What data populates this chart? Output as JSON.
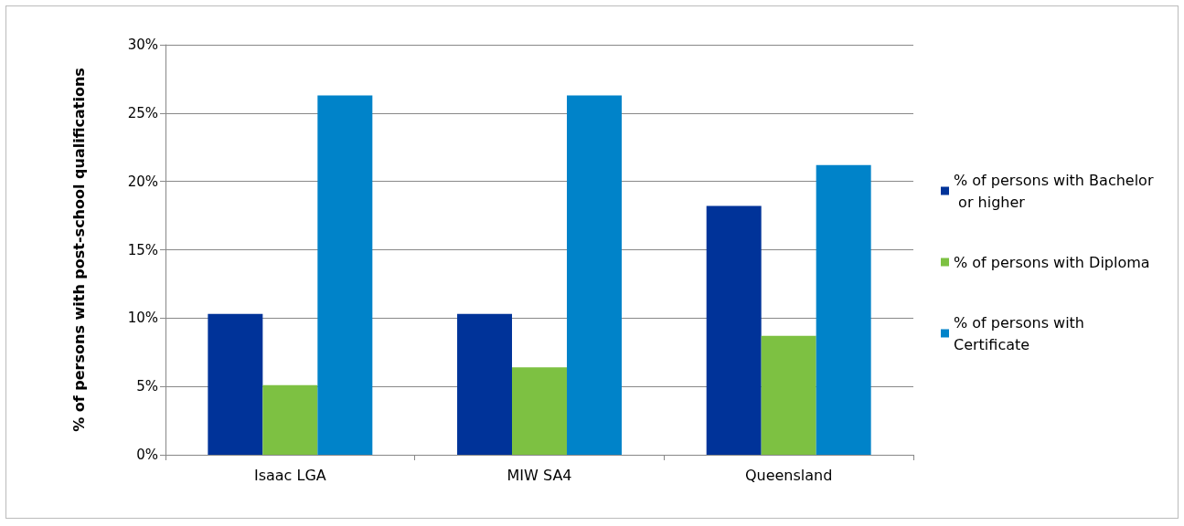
{
  "chart_data": {
    "type": "bar",
    "ylabel": "% of persons with post-school qualifications",
    "categories": [
      "Isaac LGA",
      "MIW SA4",
      "Queensland"
    ],
    "series": [
      {
        "name": "% of persons with Bachelor or higher",
        "color": "#003399",
        "values": [
          10.3,
          10.3,
          18.2
        ]
      },
      {
        "name": "% of persons with Diploma",
        "color": "#7dc142",
        "values": [
          5.1,
          6.4,
          8.7
        ]
      },
      {
        "name": "% of persons with Certificate",
        "color": "#0083c9",
        "values": [
          26.3,
          26.3,
          21.2
        ]
      }
    ],
    "ylim": [
      0,
      30
    ],
    "yticks": [
      {
        "value": 0,
        "label": "0%"
      },
      {
        "value": 5,
        "label": "5%"
      },
      {
        "value": 10,
        "label": "10%"
      },
      {
        "value": 15,
        "label": "15%"
      },
      {
        "value": 20,
        "label": "20%"
      },
      {
        "value": 25,
        "label": "25%"
      },
      {
        "value": 30,
        "label": "30%"
      }
    ],
    "grid": "y",
    "legend": "right"
  }
}
